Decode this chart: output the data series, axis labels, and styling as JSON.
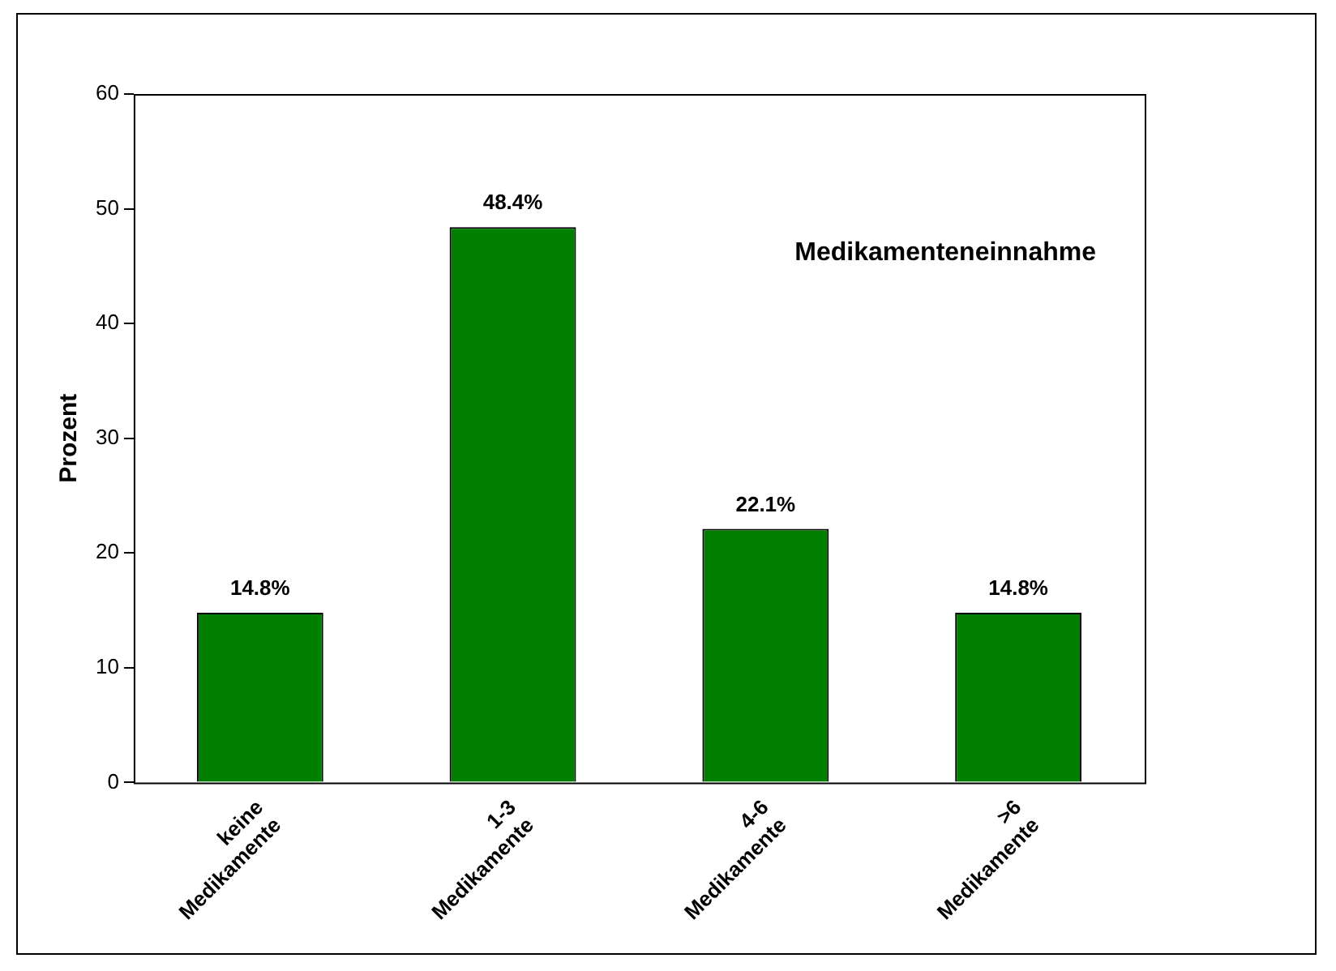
{
  "chart_data": {
    "type": "bar",
    "title": "Medikamenteneinnahme",
    "ylabel": "Prozent",
    "categories": [
      "keine Medikamente",
      "1-3 Medikamente",
      "4-6 Medikamente",
      ">6 Medikamente"
    ],
    "values": [
      14.8,
      48.4,
      22.1,
      14.8
    ],
    "value_labels": [
      "14.8%",
      "48.4%",
      "22.1%",
      "14.8%"
    ],
    "color": "#007f00",
    "ylim": [
      0,
      60
    ],
    "yticks": [
      0,
      10,
      20,
      30,
      40,
      50,
      60
    ],
    "grid": false,
    "legend": false
  }
}
